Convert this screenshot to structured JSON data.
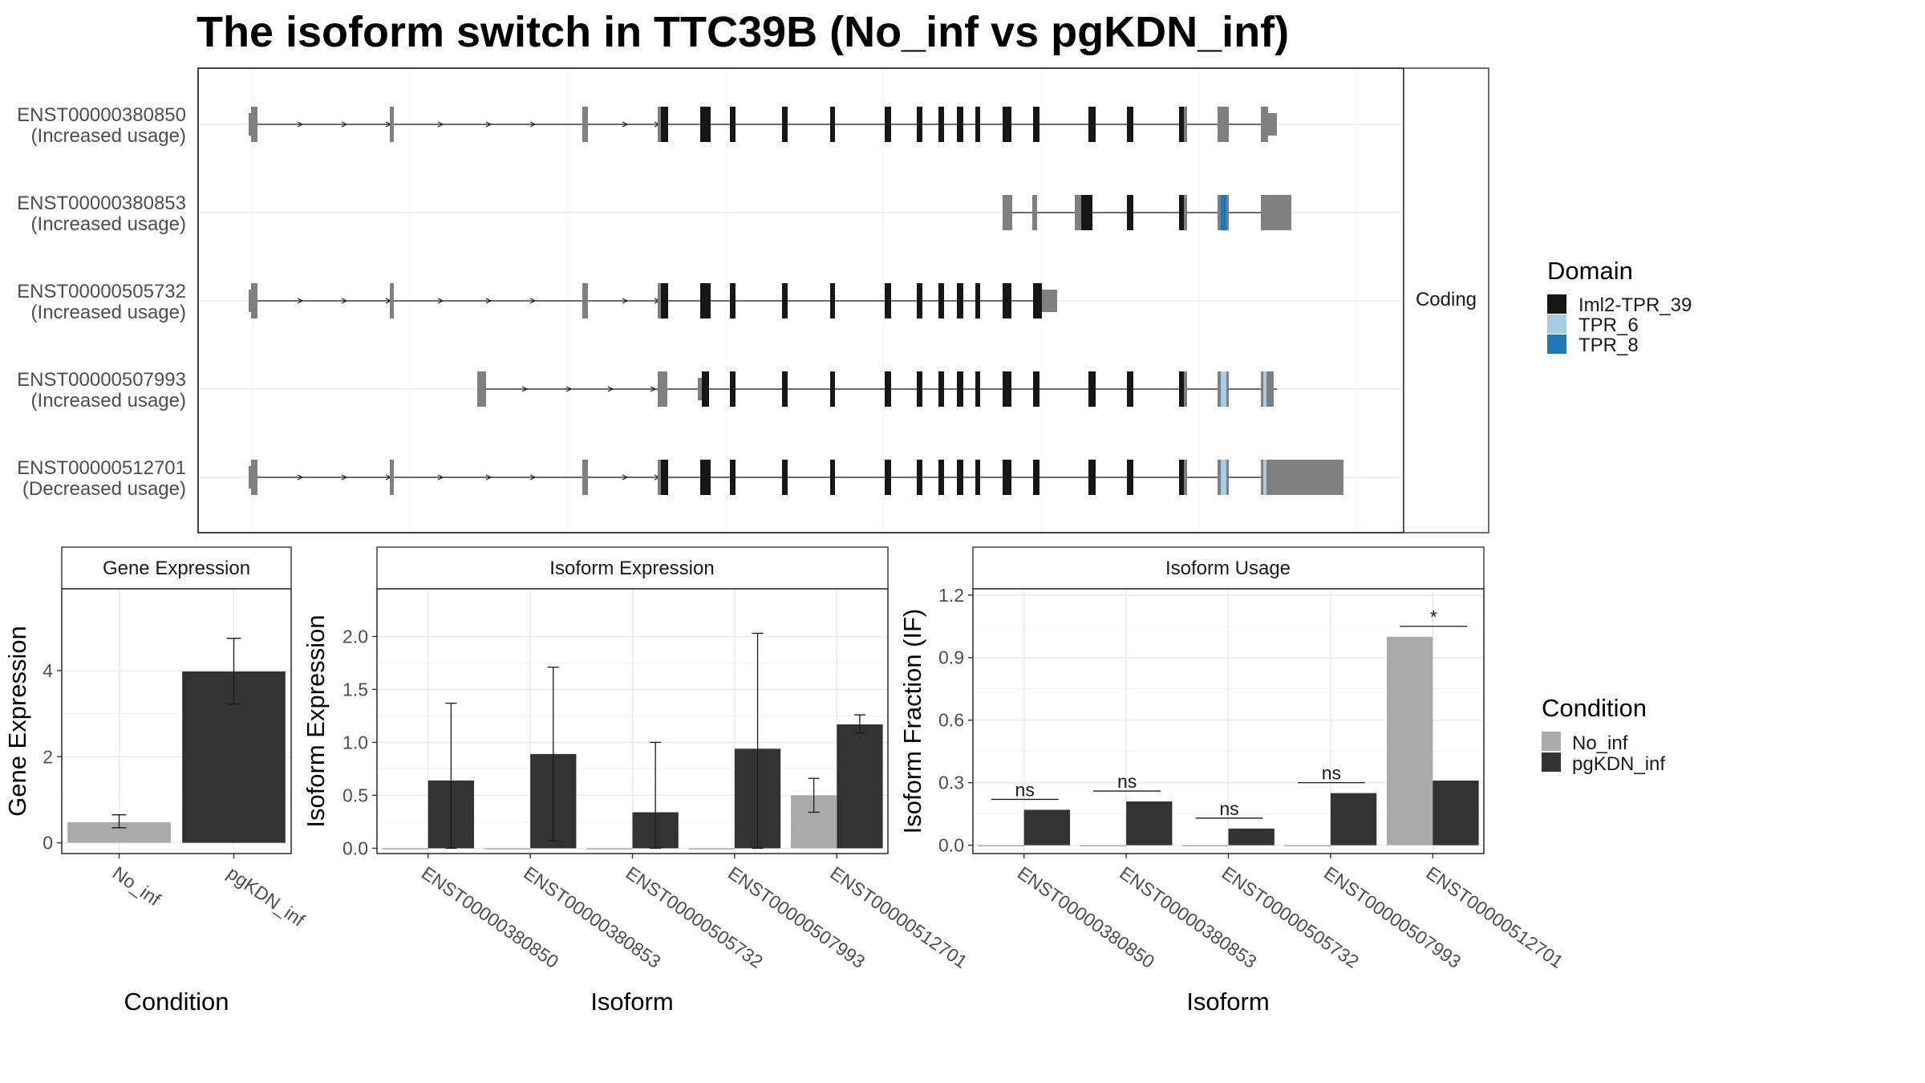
{
  "title": "The isoform switch in TTC39B (No_inf vs pgKDN_inf)",
  "colors": {
    "utr": "#7f7f7f",
    "domain_Iml2-TPR_39": "#161616",
    "domain_TPR_6": "#a6cee3",
    "domain_TPR_8": "#1f78b4",
    "No_inf": "#aaaaaa",
    "pgKDN_inf": "#333333"
  },
  "isoform_panel": {
    "strip_label": "Coding",
    "isoforms": [
      {
        "id": "ENST00000380850",
        "status": "(Increased usage)"
      },
      {
        "id": "ENST00000380853",
        "status": "(Increased usage)"
      },
      {
        "id": "ENST00000505732",
        "status": "(Increased usage)"
      },
      {
        "id": "ENST00000507993",
        "status": "(Increased usage)"
      },
      {
        "id": "ENST00000512701",
        "status": "(Decreased usage)"
      }
    ],
    "domain_legend": {
      "title": "Domain",
      "items": [
        "Iml2-TPR_39",
        "TPR_6",
        "TPR_8"
      ]
    }
  },
  "condition_legend": {
    "title": "Condition",
    "items": [
      "No_inf",
      "pgKDN_inf"
    ]
  },
  "chart_data": [
    {
      "type": "bar",
      "title": "Gene Expression",
      "xlabel": "Condition",
      "ylabel": "Gene Expression",
      "categories": [
        "No_inf",
        "pgKDN_inf"
      ],
      "values": [
        0.48,
        3.98
      ],
      "error_low": [
        0.35,
        3.22
      ],
      "error_high": [
        0.65,
        4.75
      ],
      "yticks": [
        "0",
        "2",
        "4"
      ],
      "ylim": [
        -0.25,
        5.9
      ]
    },
    {
      "type": "bar",
      "title": "Isoform Expression",
      "xlabel": "Isoform",
      "ylabel": "Isoform Expression",
      "categories": [
        "ENST00000380850",
        "ENST00000380853",
        "ENST00000505732",
        "ENST00000507993",
        "ENST00000512701"
      ],
      "series": [
        {
          "name": "No_inf",
          "values": [
            0.0,
            0.0,
            0.0,
            0.0,
            0.5
          ],
          "error_low": [
            0.0,
            0.0,
            0.0,
            0.0,
            0.34
          ],
          "error_high": [
            0.0,
            0.0,
            0.0,
            0.0,
            0.66
          ]
        },
        {
          "name": "pgKDN_inf",
          "values": [
            0.64,
            0.89,
            0.34,
            0.94,
            1.17
          ],
          "error_low": [
            0.0,
            0.07,
            0.0,
            0.0,
            1.09
          ],
          "error_high": [
            1.37,
            1.71,
            1.0,
            2.03,
            1.26
          ]
        }
      ],
      "yticks": [
        "0.0",
        "0.5",
        "1.0",
        "1.5",
        "2.0"
      ],
      "ylim": [
        -0.05,
        2.45
      ]
    },
    {
      "type": "bar",
      "title": "Isoform Usage",
      "xlabel": "Isoform",
      "ylabel": "Isoform Fraction (IF)",
      "categories": [
        "ENST00000380850",
        "ENST00000380853",
        "ENST00000505732",
        "ENST00000507993",
        "ENST00000512701"
      ],
      "series": [
        {
          "name": "No_inf",
          "values": [
            0.0,
            0.0,
            0.0,
            0.0,
            1.0
          ]
        },
        {
          "name": "pgKDN_inf",
          "values": [
            0.17,
            0.21,
            0.08,
            0.25,
            0.31
          ]
        }
      ],
      "significance": [
        "ns",
        "ns",
        "ns",
        "ns",
        "*"
      ],
      "yticks": [
        "0.0",
        "0.3",
        "0.6",
        "0.9",
        "1.2"
      ],
      "ylim": [
        -0.04,
        1.23
      ]
    }
  ]
}
